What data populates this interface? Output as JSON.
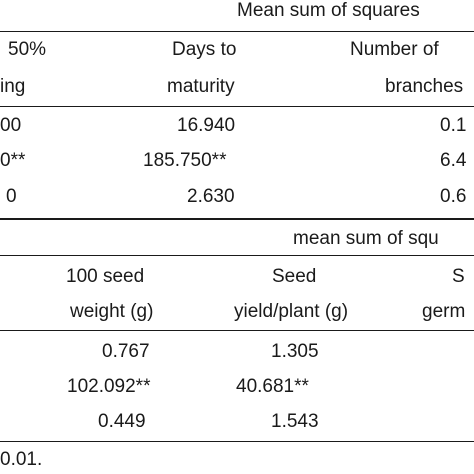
{
  "table1": {
    "group_header": "Mean sum of squares",
    "columns": {
      "col1_line1": "50%",
      "col1_line2": "ing",
      "col2_line1": "Days to",
      "col2_line2": "maturity",
      "col3_line1": "Number of",
      "col3_line2": "branches"
    },
    "rows": [
      {
        "c1": "00",
        "c2": "16.940",
        "c3": "0.1"
      },
      {
        "c1": "0**",
        "c2": "185.750**",
        "c3": "6.4"
      },
      {
        "c1": "0",
        "c2": "2.630",
        "c3": "0.6"
      }
    ]
  },
  "table2": {
    "group_header": "mean sum of squ",
    "columns": {
      "col1_line1": "100 seed",
      "col1_line2": "weight (g)",
      "col2_line1": "Seed",
      "col2_line2": "yield/plant (g)",
      "col3_line1": "S",
      "col3_line2": "germ"
    },
    "rows": [
      {
        "c1": "0.767",
        "c2": "1.305"
      },
      {
        "c1": "102.092**",
        "c2": "40.681**"
      },
      {
        "c1": "0.449",
        "c2": "1.543"
      }
    ],
    "footnote": "0.01."
  }
}
